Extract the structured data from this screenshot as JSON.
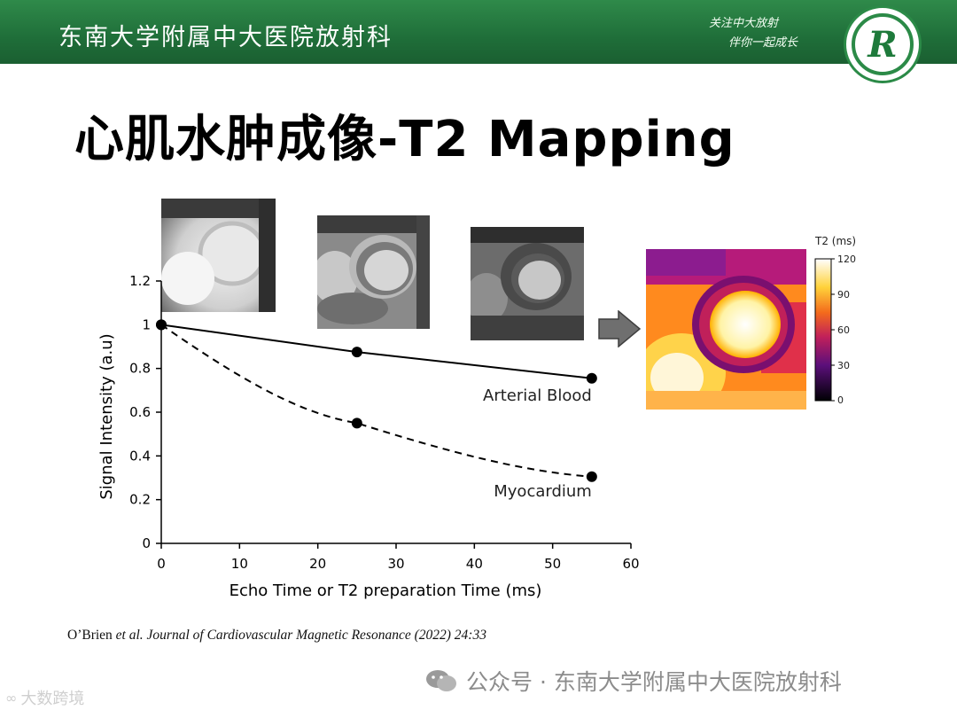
{
  "header": {
    "title": "东南大学附属中大医院放射科",
    "slogan": [
      "关注中大放射",
      "伴你一起成长"
    ],
    "logo_icon": "hospital-radiology-logo-icon",
    "colors": {
      "banner": "#1f6e39",
      "accent": "#2b8a47"
    }
  },
  "slide": {
    "title": "心肌水肿成像-T2 Mapping"
  },
  "colorbar": {
    "title": "T2 (ms)",
    "ticks": [
      "120",
      "90",
      "60",
      "30",
      "0"
    ],
    "colormap": "inferno-like (black-purple-red-orange-yellow-white)"
  },
  "arrow_icon": "right-arrow-icon",
  "chart_data": {
    "type": "line",
    "xlabel": "Echo Time or T2 preparation Time (ms)",
    "ylabel": "Signal Intensity (a.u)",
    "xlim": [
      0,
      60
    ],
    "ylim": [
      0,
      1.2
    ],
    "x_ticks": [
      "0",
      "10",
      "20",
      "30",
      "40",
      "50",
      "60"
    ],
    "y_ticks": [
      "0",
      "0.2",
      "0.4",
      "0.6",
      "0.8",
      "1",
      "1.2"
    ],
    "grid": false,
    "x": [
      0,
      25,
      55
    ],
    "series": [
      {
        "name": "Arterial Blood",
        "style": "solid",
        "values": [
          1.0,
          0.875,
          0.755
        ],
        "color": "#000000"
      },
      {
        "name": "Myocardium",
        "style": "dashed",
        "values": [
          1.0,
          0.55,
          0.305
        ],
        "color": "#000000"
      }
    ]
  },
  "citation": {
    "authors": "O’Brien ",
    "etal": "et al.",
    "rest": " Journal of Cardiovascular Magnetic Resonance (2022) 24:33"
  },
  "footer": {
    "wechat_icon": "wechat-icon",
    "wechat_text": "公众号 · 东南大学附属中大医院放射科",
    "corner_text": "大数跨境"
  }
}
